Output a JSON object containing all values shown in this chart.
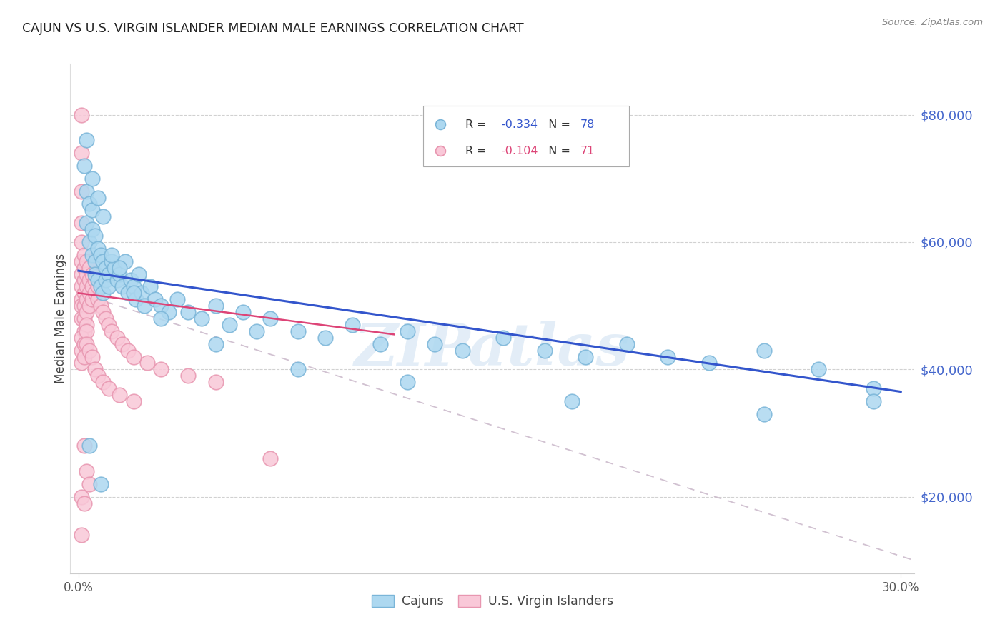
{
  "title": "CAJUN VS U.S. VIRGIN ISLANDER MEDIAN MALE EARNINGS CORRELATION CHART",
  "source": "Source: ZipAtlas.com",
  "ylabel": "Median Male Earnings",
  "y_tick_values": [
    20000,
    40000,
    60000,
    80000
  ],
  "y_tick_labels": [
    "$20,000",
    "$40,000",
    "$60,000",
    "$80,000"
  ],
  "y_right_color": "#4466cc",
  "xlim_min": -0.003,
  "xlim_max": 0.305,
  "ylim_min": 8000,
  "ylim_max": 88000,
  "cajun_scatter_color_face": "#add8f0",
  "cajun_scatter_color_edge": "#7ab5d8",
  "virgin_scatter_color_face": "#f9c8d8",
  "virgin_scatter_color_edge": "#e896b0",
  "trend_blue_color": "#3355cc",
  "trend_pink_color": "#dd4477",
  "trend_dashed_color": "#ccbbcc",
  "watermark_text": "ZIPatlas",
  "watermark_color": "#c8ddf0",
  "legend_r1": "R = ",
  "legend_v1": "-0.334",
  "legend_n1": "N = ",
  "legend_vn1": "78",
  "legend_r2": "R = ",
  "legend_v2": "-0.104",
  "legend_n2": "N = ",
  "legend_vn2": "71",
  "blue_trend_x": [
    0.0,
    0.3
  ],
  "blue_trend_y": [
    55500,
    36500
  ],
  "pink_trend_x": [
    0.0,
    0.115
  ],
  "pink_trend_y": [
    52000,
    45500
  ],
  "dashed_trend_x": [
    0.0,
    0.305
  ],
  "dashed_trend_y": [
    52000,
    10000
  ],
  "cajun_x": [
    0.002,
    0.003,
    0.003,
    0.004,
    0.004,
    0.005,
    0.005,
    0.005,
    0.006,
    0.006,
    0.006,
    0.007,
    0.007,
    0.008,
    0.008,
    0.009,
    0.009,
    0.01,
    0.01,
    0.011,
    0.011,
    0.012,
    0.013,
    0.014,
    0.015,
    0.016,
    0.017,
    0.018,
    0.019,
    0.02,
    0.021,
    0.022,
    0.023,
    0.024,
    0.026,
    0.028,
    0.03,
    0.033,
    0.036,
    0.04,
    0.045,
    0.05,
    0.055,
    0.06,
    0.065,
    0.07,
    0.08,
    0.09,
    0.1,
    0.11,
    0.12,
    0.13,
    0.14,
    0.155,
    0.17,
    0.185,
    0.2,
    0.215,
    0.23,
    0.25,
    0.27,
    0.29,
    0.003,
    0.005,
    0.007,
    0.009,
    0.012,
    0.015,
    0.02,
    0.03,
    0.05,
    0.08,
    0.12,
    0.18,
    0.25,
    0.29,
    0.004,
    0.008
  ],
  "cajun_y": [
    72000,
    68000,
    63000,
    66000,
    60000,
    62000,
    58000,
    65000,
    57000,
    61000,
    55000,
    59000,
    54000,
    58000,
    53000,
    57000,
    52000,
    56000,
    54000,
    55000,
    53000,
    57000,
    56000,
    54000,
    55000,
    53000,
    57000,
    52000,
    54000,
    53000,
    51000,
    55000,
    52000,
    50000,
    53000,
    51000,
    50000,
    49000,
    51000,
    49000,
    48000,
    50000,
    47000,
    49000,
    46000,
    48000,
    46000,
    45000,
    47000,
    44000,
    46000,
    44000,
    43000,
    45000,
    43000,
    42000,
    44000,
    42000,
    41000,
    43000,
    40000,
    37000,
    76000,
    70000,
    67000,
    64000,
    58000,
    56000,
    52000,
    48000,
    44000,
    40000,
    38000,
    35000,
    33000,
    35000,
    28000,
    22000
  ],
  "virgin_x": [
    0.001,
    0.001,
    0.001,
    0.001,
    0.001,
    0.001,
    0.001,
    0.001,
    0.001,
    0.001,
    0.001,
    0.002,
    0.002,
    0.002,
    0.002,
    0.002,
    0.002,
    0.002,
    0.002,
    0.003,
    0.003,
    0.003,
    0.003,
    0.003,
    0.003,
    0.004,
    0.004,
    0.004,
    0.004,
    0.005,
    0.005,
    0.005,
    0.006,
    0.006,
    0.007,
    0.007,
    0.008,
    0.009,
    0.01,
    0.011,
    0.012,
    0.014,
    0.016,
    0.018,
    0.02,
    0.025,
    0.03,
    0.04,
    0.05,
    0.07,
    0.001,
    0.001,
    0.001,
    0.002,
    0.002,
    0.003,
    0.003,
    0.004,
    0.005,
    0.006,
    0.007,
    0.009,
    0.011,
    0.015,
    0.02,
    0.001,
    0.002,
    0.003,
    0.004,
    0.002,
    0.001
  ],
  "virgin_y": [
    80000,
    74000,
    68000,
    63000,
    60000,
    57000,
    55000,
    53000,
    51000,
    50000,
    48000,
    58000,
    56000,
    54000,
    52000,
    50000,
    48000,
    46000,
    44000,
    57000,
    55000,
    53000,
    51000,
    49000,
    47000,
    56000,
    54000,
    52000,
    50000,
    55000,
    53000,
    51000,
    54000,
    52000,
    53000,
    51000,
    50000,
    49000,
    48000,
    47000,
    46000,
    45000,
    44000,
    43000,
    42000,
    41000,
    40000,
    39000,
    38000,
    26000,
    45000,
    43000,
    41000,
    44000,
    42000,
    46000,
    44000,
    43000,
    42000,
    40000,
    39000,
    38000,
    37000,
    36000,
    35000,
    20000,
    28000,
    24000,
    22000,
    19000,
    14000
  ]
}
